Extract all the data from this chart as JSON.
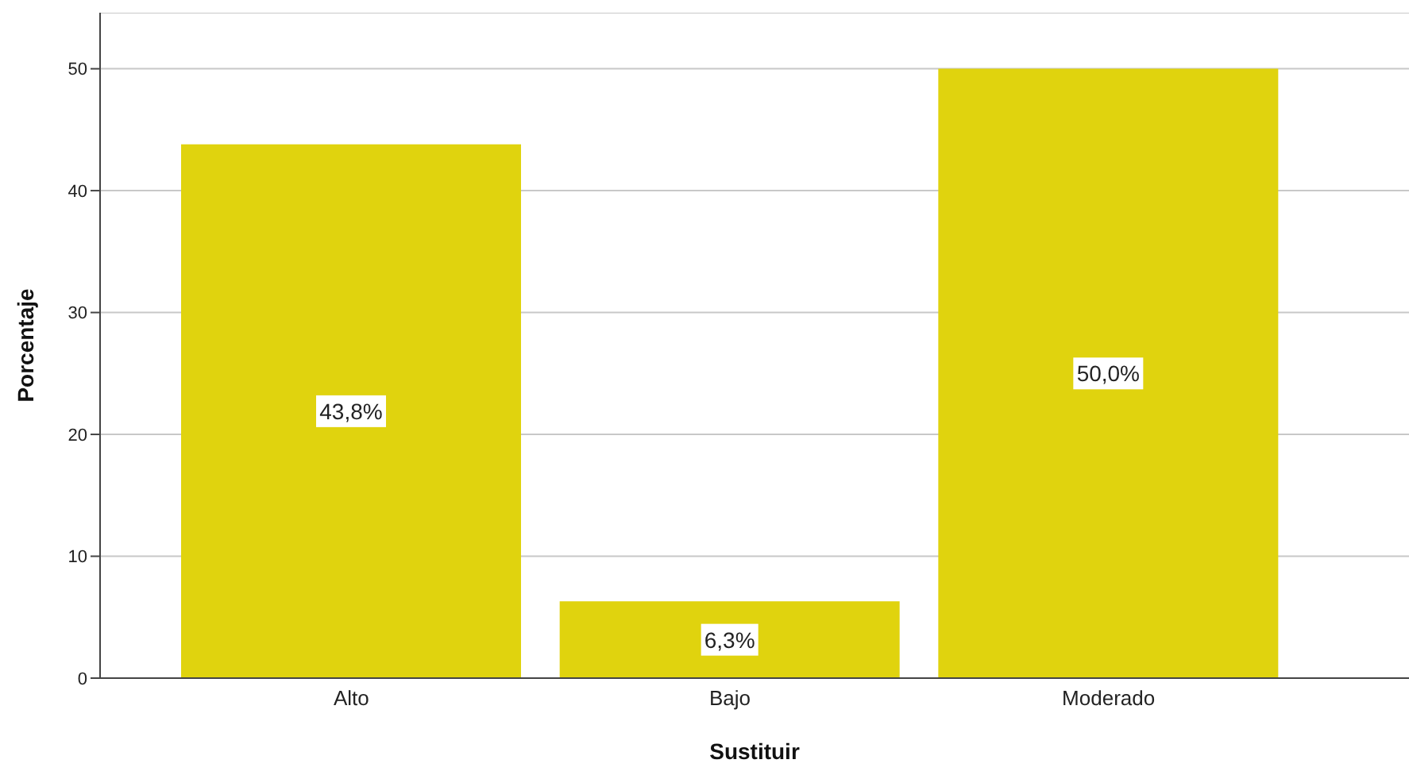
{
  "chart_data": {
    "type": "bar",
    "xlabel": "Sustituir",
    "ylabel": "Porcentaje",
    "categories": [
      "Alto",
      "Bajo",
      "Moderado"
    ],
    "values": [
      43.8,
      6.3,
      50.0
    ],
    "value_labels": [
      "43,8%",
      "6,3%",
      "50,0%"
    ],
    "color": "#e0d30e",
    "ylim": [
      0,
      54.6
    ],
    "yticks": [
      0,
      10,
      20,
      30,
      40,
      50
    ],
    "grid": "y"
  }
}
